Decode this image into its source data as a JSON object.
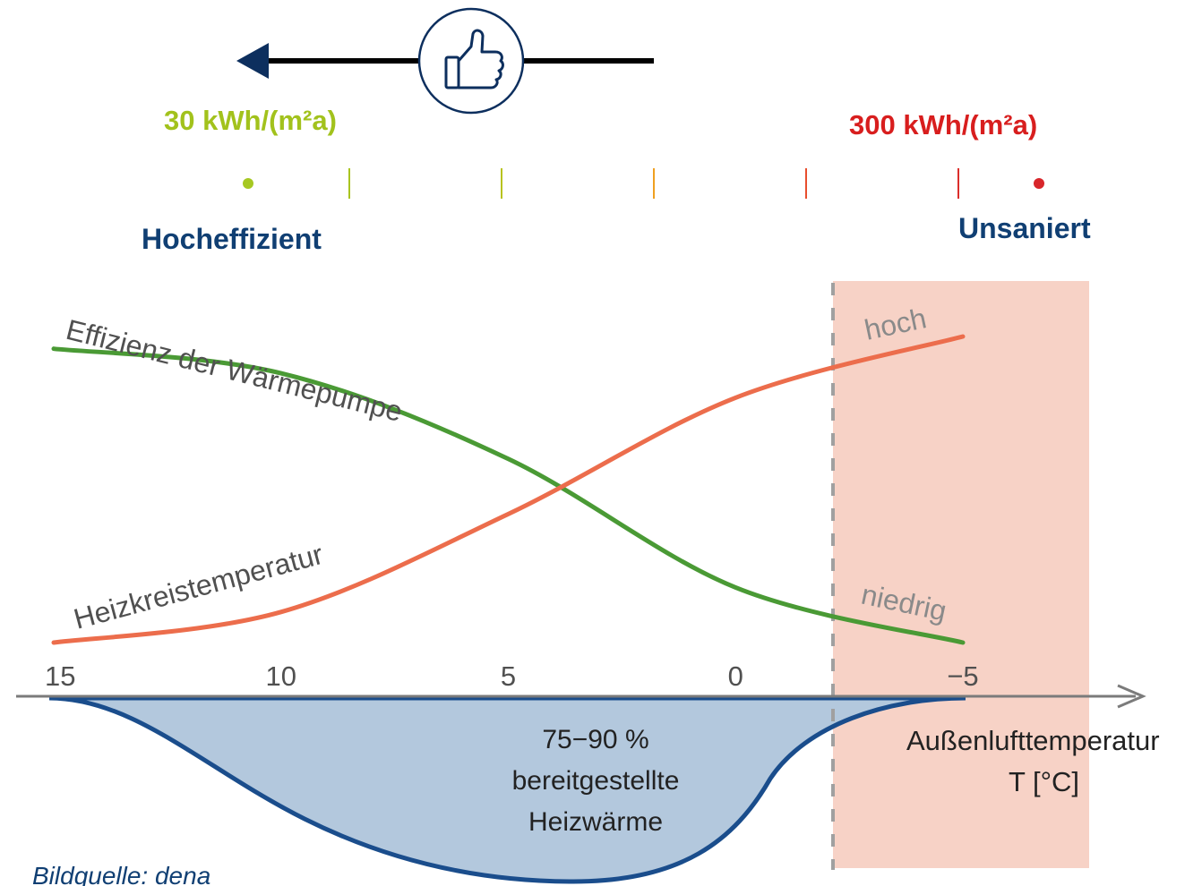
{
  "colors": {
    "navy": "#0d2f5e",
    "label_navy": "#103f73",
    "green_label": "#a2c21c",
    "red_label": "#d81e1e",
    "efficiency_curve": "#4a9a35",
    "temperature_curve": "#ec6d4c",
    "heat_fill": "#b3c8dd",
    "heat_outline": "#1a4d8c",
    "cold_zone": "#f7d2c6",
    "dashed_line": "#a0a0a0",
    "axis": "#7b7b7b",
    "text_gray": "#505050",
    "scale_start": "#a6c822",
    "scale_end": "#d8262b"
  },
  "header": {
    "thumb_icon": "thumbs-up-icon",
    "arrow_icon": "left-arrow-icon",
    "left_value": "30 kWh/(m²a)",
    "right_value": "300 kWh/(m²a)",
    "left_label": "Hocheffizient",
    "right_label": "Unsaniert",
    "scale_ticks": 5
  },
  "chart_data": {
    "type": "line",
    "xlabel": "Außenlufttemperatur",
    "xunit": "T [°C]",
    "x_ticks": [
      "15",
      "10",
      "5",
      "0",
      "−5"
    ],
    "xlim": [
      15,
      -5
    ],
    "highlight_region": {
      "from": -2.8,
      "to": -8.0
    },
    "series": [
      {
        "name": "Effizienz der Wärmepumpe",
        "end_label": "niedrig",
        "x": [
          15,
          10,
          5,
          0,
          -5
        ],
        "y": [
          0.96,
          0.88,
          0.6,
          0.18,
          0.0
        ]
      },
      {
        "name": "Heizkreistemperatur",
        "end_label": "hoch",
        "x": [
          15,
          10,
          5,
          0,
          -5
        ],
        "y": [
          0.0,
          0.1,
          0.42,
          0.8,
          1.0
        ]
      }
    ],
    "area": {
      "label_line1": "75−90 %",
      "label_line2": "bereitgestellte",
      "label_line3": "Heizwärme"
    }
  },
  "footer": {
    "source": "Bildquelle:  dena"
  }
}
